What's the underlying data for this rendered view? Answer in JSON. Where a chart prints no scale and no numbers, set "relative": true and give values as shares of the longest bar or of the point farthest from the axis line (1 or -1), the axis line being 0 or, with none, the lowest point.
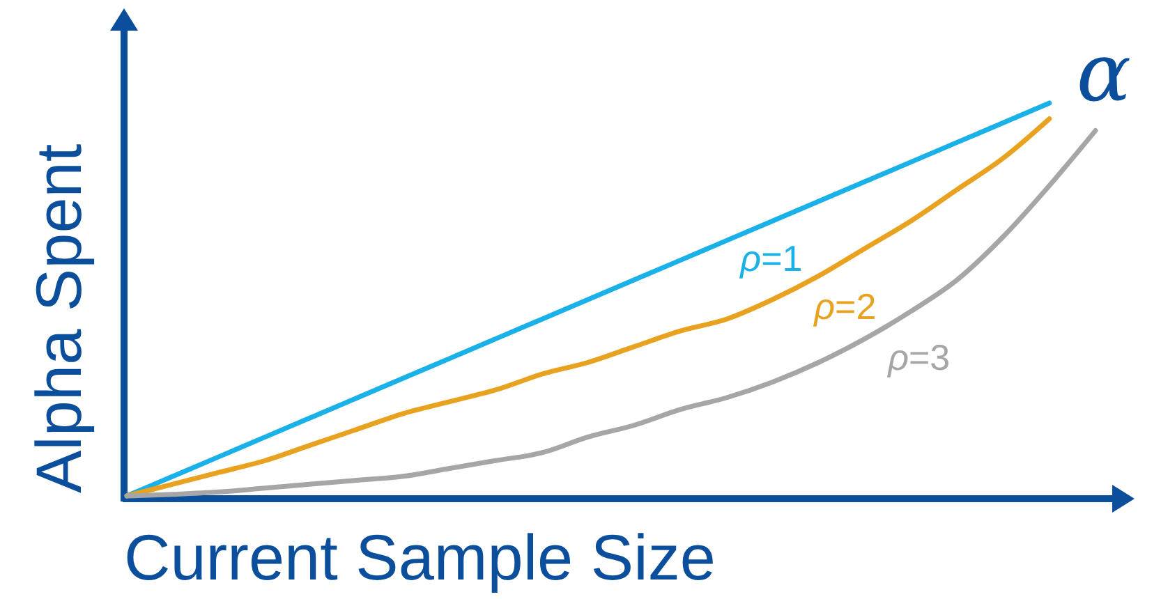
{
  "chart_data": {
    "type": "line",
    "relative": true,
    "xlabel": "Current Sample Size",
    "ylabel": "Alpha Spent",
    "annotations": [
      "α"
    ],
    "legend": false,
    "grid": false,
    "marker": "none",
    "line_style": "solid",
    "categories": [
      null,
      null,
      null,
      null,
      null,
      null,
      null,
      null,
      null,
      null,
      null,
      null,
      null,
      null,
      null,
      null,
      null,
      null,
      null,
      null,
      null,
      null
    ],
    "series": [
      {
        "name": "ρ=1",
        "color": "#1ab0e8",
        "values": [
          0,
          0.05,
          0.1,
          0.15,
          0.2,
          0.25,
          0.3,
          0.35,
          0.4,
          0.45,
          0.5,
          0.55,
          0.6,
          0.65,
          0.7,
          0.75,
          0.8,
          0.85,
          0.9,
          0.95,
          1,
          null
        ]
      },
      {
        "name": "ρ=2",
        "color": "#e8a21f",
        "values": [
          0,
          0.03,
          0.06,
          0.09,
          0.13,
          0.17,
          0.21,
          0.24,
          0.27,
          0.31,
          0.34,
          0.38,
          0.42,
          0.45,
          0.5,
          0.56,
          0.63,
          0.7,
          0.78,
          0.86,
          0.96,
          null
        ]
      },
      {
        "name": "ρ=3",
        "color": "#a6a6a6",
        "values": [
          0,
          0.004,
          0.01,
          0.02,
          0.03,
          0.04,
          0.05,
          0.07,
          0.09,
          0.11,
          0.15,
          0.18,
          0.22,
          0.25,
          0.29,
          0.34,
          0.4,
          0.47,
          0.55,
          0.66,
          0.79,
          0.93
        ]
      }
    ]
  }
}
